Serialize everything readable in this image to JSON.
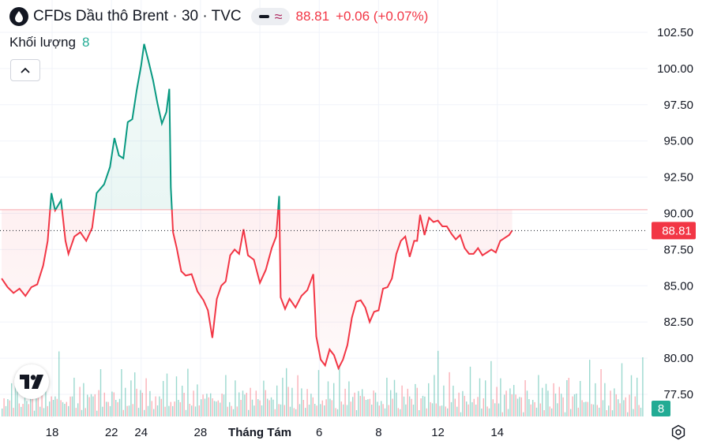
{
  "header": {
    "title": "CFDs Dầu thô Brent · 30 · TVC",
    "last_price": "88.81",
    "change": "+0.06 (+0.07%)",
    "icons": [
      "oil-drop-icon",
      "line-style-icon",
      "wave-icon"
    ]
  },
  "volume_legend": {
    "label": "Khối lượng",
    "value": "8"
  },
  "price_axis": {
    "ticks": [
      "102.50",
      "100.00",
      "97.50",
      "95.00",
      "92.50",
      "90.00",
      "87.50",
      "85.00",
      "82.50",
      "80.00",
      "77.50"
    ],
    "current_label": "88.81",
    "volume_label": "8"
  },
  "time_axis": {
    "ticks": [
      "18",
      "22",
      "24",
      "28",
      "Tháng Tám",
      "6",
      "8",
      "12",
      "14"
    ]
  },
  "colors": {
    "up": "#089981",
    "down": "#f23645",
    "label_bg": "#f23645",
    "volume_label_bg": "#22ab94"
  },
  "chart_data": {
    "type": "area",
    "title": "CFDs Dầu thô Brent · 30 · TVC",
    "baseline": 90.25,
    "last": 88.81,
    "ylim": [
      76.6,
      103.7
    ],
    "x_ticks": [
      "18",
      "22",
      "24",
      "28",
      "Tháng Tám",
      "6",
      "8",
      "12",
      "14"
    ],
    "x_tick_index": [
      18,
      22,
      24,
      28,
      32,
      36,
      40,
      44,
      48
    ],
    "x_range": [
      14.5,
      50.2
    ],
    "points": [
      [
        14.6,
        85.5
      ],
      [
        15.0,
        84.9
      ],
      [
        15.4,
        84.5
      ],
      [
        15.8,
        84.8
      ],
      [
        16.2,
        84.3
      ],
      [
        16.6,
        84.9
      ],
      [
        17.0,
        85.1
      ],
      [
        17.4,
        86.4
      ],
      [
        17.7,
        88.1
      ],
      [
        17.95,
        91.4
      ],
      [
        18.2,
        90.2
      ],
      [
        18.6,
        90.9
      ],
      [
        18.9,
        88.1
      ],
      [
        19.1,
        87.2
      ],
      [
        19.5,
        88.4
      ],
      [
        19.9,
        88.7
      ],
      [
        20.3,
        88.1
      ],
      [
        20.7,
        89.0
      ],
      [
        21.0,
        91.4
      ],
      [
        21.5,
        92.0
      ],
      [
        21.9,
        93.2
      ],
      [
        22.2,
        95.2
      ],
      [
        22.5,
        94.0
      ],
      [
        22.8,
        93.8
      ],
      [
        23.1,
        96.3
      ],
      [
        23.4,
        96.5
      ],
      [
        23.7,
        98.5
      ],
      [
        24.0,
        100.2
      ],
      [
        24.2,
        101.7
      ],
      [
        24.5,
        100.5
      ],
      [
        24.8,
        99.2
      ],
      [
        25.1,
        97.6
      ],
      [
        25.4,
        96.2
      ],
      [
        25.7,
        97.0
      ],
      [
        25.9,
        98.6
      ],
      [
        26.0,
        91.8
      ],
      [
        26.15,
        88.7
      ],
      [
        26.4,
        87.6
      ],
      [
        26.7,
        86.0
      ],
      [
        27.0,
        85.7
      ],
      [
        27.4,
        85.8
      ],
      [
        27.8,
        84.6
      ],
      [
        28.2,
        84.0
      ],
      [
        28.5,
        83.3
      ],
      [
        28.8,
        81.4
      ],
      [
        29.1,
        84.1
      ],
      [
        29.4,
        85.0
      ],
      [
        29.7,
        85.3
      ],
      [
        30.0,
        87.1
      ],
      [
        30.3,
        87.5
      ],
      [
        30.6,
        87.2
      ],
      [
        30.9,
        88.9
      ],
      [
        31.2,
        87.1
      ],
      [
        31.6,
        86.8
      ],
      [
        32.0,
        85.2
      ],
      [
        32.4,
        86.1
      ],
      [
        32.8,
        87.6
      ],
      [
        33.1,
        88.4
      ],
      [
        33.3,
        91.2
      ],
      [
        33.4,
        84.2
      ],
      [
        33.7,
        83.4
      ],
      [
        34.0,
        84.1
      ],
      [
        34.4,
        83.5
      ],
      [
        34.8,
        84.3
      ],
      [
        35.2,
        84.7
      ],
      [
        35.6,
        85.8
      ],
      [
        35.8,
        81.5
      ],
      [
        36.1,
        79.9
      ],
      [
        36.4,
        79.5
      ],
      [
        36.7,
        80.6
      ],
      [
        37.0,
        80.2
      ],
      [
        37.3,
        79.3
      ],
      [
        37.6,
        79.9
      ],
      [
        37.9,
        80.9
      ],
      [
        38.2,
        82.8
      ],
      [
        38.5,
        83.9
      ],
      [
        38.8,
        84.0
      ],
      [
        39.1,
        83.5
      ],
      [
        39.4,
        82.5
      ],
      [
        39.7,
        83.2
      ],
      [
        40.0,
        83.3
      ],
      [
        40.3,
        84.8
      ],
      [
        40.6,
        84.9
      ],
      [
        40.9,
        85.5
      ],
      [
        41.2,
        87.2
      ],
      [
        41.5,
        88.1
      ],
      [
        41.8,
        88.4
      ],
      [
        42.1,
        87.0
      ],
      [
        42.4,
        88.1
      ],
      [
        42.6,
        88.1
      ],
      [
        42.8,
        89.9
      ],
      [
        43.1,
        88.5
      ],
      [
        43.4,
        89.7
      ],
      [
        43.7,
        89.4
      ],
      [
        44.0,
        89.5
      ],
      [
        44.3,
        89.1
      ],
      [
        44.6,
        89.1
      ],
      [
        44.9,
        88.6
      ],
      [
        45.2,
        88.2
      ],
      [
        45.5,
        88.5
      ],
      [
        45.8,
        87.6
      ],
      [
        46.1,
        87.2
      ],
      [
        46.4,
        87.2
      ],
      [
        46.7,
        87.6
      ],
      [
        47.0,
        87.1
      ],
      [
        47.3,
        87.3
      ],
      [
        47.6,
        87.5
      ],
      [
        47.9,
        87.3
      ],
      [
        48.2,
        88.1
      ],
      [
        48.5,
        88.3
      ],
      [
        48.8,
        88.5
      ],
      [
        49.0,
        88.81
      ]
    ],
    "volume_range": [
      0,
      14
    ],
    "volume_pattern": [
      3,
      5,
      2,
      7,
      4,
      6,
      3,
      9,
      5,
      4,
      2,
      6,
      8,
      3,
      5,
      7,
      4,
      2,
      10,
      6,
      3,
      5,
      4,
      8,
      2,
      6,
      5,
      3,
      7,
      4,
      11,
      5,
      3,
      6,
      4,
      2,
      8,
      5,
      7,
      3
    ]
  }
}
